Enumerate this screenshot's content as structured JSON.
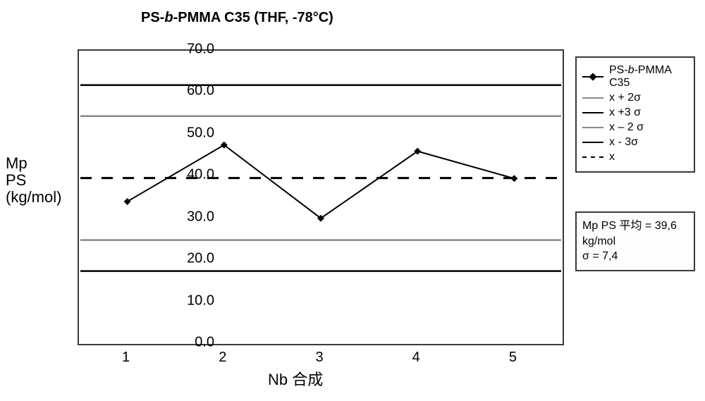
{
  "chart": {
    "type": "line",
    "title_prefix": "PS-",
    "title_italic": "b",
    "title_suffix": "-PMMA C35 (THF, -78°C)",
    "title_fontsize": 20,
    "x_axis_label": "Nb 合成",
    "y_axis_label": "Mp PS (kg/mol)",
    "xlim": [
      0.5,
      5.5
    ],
    "ylim": [
      0.0,
      70.0
    ],
    "yticks": [
      "0.0",
      "10.0",
      "20.0",
      "30.0",
      "40.0",
      "50.0",
      "60.0",
      "70.0"
    ],
    "xticks": [
      "1",
      "2",
      "3",
      "4",
      "5"
    ],
    "xtick_vals": [
      1,
      2,
      3,
      4,
      5
    ],
    "background_color": "#ffffff",
    "border_color": "#3a3a3a",
    "series": {
      "x": [
        1,
        2,
        3,
        4,
        5
      ],
      "y": [
        34.0,
        47.5,
        30.0,
        46.0,
        39.5
      ],
      "line_color": "#000000",
      "line_width": 2,
      "marker_shape": "diamond",
      "marker_fill": "#000000",
      "marker_size": 10
    },
    "ref_lines": {
      "mean": {
        "value": 39.6,
        "style": "dashed",
        "color": "#000000",
        "width": 3
      },
      "plus2": {
        "value": 54.4,
        "style": "solid",
        "color": "#888888",
        "width": 2.5
      },
      "plus3": {
        "value": 61.8,
        "style": "solid",
        "color": "#000000",
        "width": 2.5
      },
      "minus2": {
        "value": 24.8,
        "style": "solid",
        "color": "#888888",
        "width": 2.5
      },
      "minus3": {
        "value": 17.4,
        "style": "solid",
        "color": "#000000",
        "width": 2.5
      }
    }
  },
  "legend": {
    "items": [
      {
        "type": "series",
        "label_prefix": "PS-",
        "label_italic": "b",
        "label_suffix": "-PMMA C35",
        "color": "#000000"
      },
      {
        "type": "line",
        "label": "x + 2σ",
        "color": "#888888"
      },
      {
        "type": "line",
        "label": "x +3 σ",
        "color": "#000000"
      },
      {
        "type": "line",
        "label": "x – 2 σ",
        "color": "#888888"
      },
      {
        "type": "line",
        "label": "x - 3σ",
        "color": "#000000"
      },
      {
        "type": "dashed",
        "label": "x",
        "color": "#000000"
      }
    ]
  },
  "stats": {
    "line1": "Mp PS 平均 = 39,6 kg/mol",
    "line2": "σ = 7,4"
  }
}
